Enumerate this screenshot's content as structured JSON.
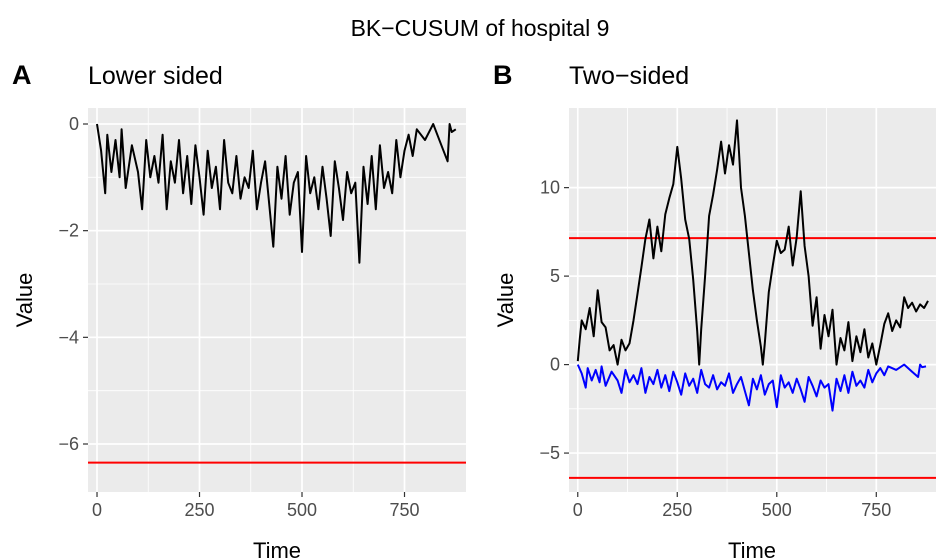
{
  "figure": {
    "title": "BK−CUSUM of hospital 9"
  },
  "chart_data": [
    {
      "type": "line",
      "tag": "A",
      "title": "Lower sided",
      "xlabel": "Time",
      "ylabel": "Value",
      "xlim": [
        -22,
        900
      ],
      "ylim": [
        -6.9,
        0.3
      ],
      "xticks": [
        0,
        250,
        500,
        750
      ],
      "xtick_labels": [
        "0",
        "250",
        "500",
        "750"
      ],
      "yticks": [
        -6,
        -4,
        -2,
        0
      ],
      "ytick_labels": [
        "−6",
        "−4",
        "−2",
        "0"
      ],
      "grid": true,
      "hlines": [
        {
          "y": -6.35,
          "color": "#ff0000"
        }
      ],
      "series": [
        {
          "color": "#000000",
          "x": [
            0,
            10,
            20,
            25,
            35,
            45,
            55,
            60,
            70,
            85,
            100,
            110,
            120,
            130,
            140,
            150,
            160,
            170,
            180,
            190,
            200,
            210,
            220,
            230,
            240,
            250,
            260,
            270,
            280,
            290,
            300,
            310,
            320,
            330,
            340,
            350,
            360,
            370,
            380,
            390,
            400,
            410,
            420,
            430,
            440,
            450,
            460,
            470,
            480,
            490,
            500,
            510,
            520,
            530,
            540,
            550,
            560,
            570,
            580,
            590,
            600,
            610,
            620,
            630,
            640,
            650,
            660,
            670,
            680,
            690,
            700,
            710,
            720,
            730,
            740,
            750,
            760,
            770,
            780,
            800,
            820,
            840,
            855,
            860,
            865,
            875
          ],
          "y": [
            0,
            -0.5,
            -1.3,
            -0.2,
            -0.9,
            -0.3,
            -1.0,
            -0.1,
            -1.2,
            -0.4,
            -0.9,
            -1.6,
            -0.3,
            -1.0,
            -0.6,
            -1.1,
            -0.2,
            -1.6,
            -0.7,
            -1.1,
            -0.3,
            -1.3,
            -0.6,
            -1.5,
            -0.4,
            -1.0,
            -1.7,
            -0.5,
            -1.2,
            -0.8,
            -1.6,
            -0.3,
            -1.1,
            -1.3,
            -0.6,
            -1.4,
            -1.0,
            -1.2,
            -0.5,
            -1.6,
            -1.1,
            -0.7,
            -1.5,
            -2.3,
            -0.8,
            -1.4,
            -0.6,
            -1.7,
            -1.1,
            -0.9,
            -2.4,
            -0.6,
            -1.3,
            -1.0,
            -1.6,
            -0.8,
            -1.4,
            -2.1,
            -0.7,
            -1.2,
            -1.8,
            -0.9,
            -1.3,
            -1.1,
            -2.6,
            -0.8,
            -1.5,
            -0.6,
            -1.6,
            -0.4,
            -1.2,
            -0.9,
            -1.3,
            -0.3,
            -1.0,
            -0.5,
            -0.2,
            -0.6,
            -0.1,
            -0.3,
            0,
            -0.4,
            -0.7,
            0,
            -0.15,
            -0.1
          ]
        }
      ]
    },
    {
      "type": "line",
      "tag": "B",
      "title": "Two−sided",
      "xlabel": "Time",
      "ylabel": "Value",
      "xlim": [
        -22,
        900
      ],
      "ylim": [
        -7.2,
        14.5
      ],
      "xticks": [
        0,
        250,
        500,
        750
      ],
      "xtick_labels": [
        "0",
        "250",
        "500",
        "750"
      ],
      "yticks": [
        -5,
        0,
        5,
        10
      ],
      "ytick_labels": [
        "−5",
        "0",
        "5",
        "10"
      ],
      "grid": true,
      "hlines": [
        {
          "y": 7.15,
          "color": "#ff0000"
        },
        {
          "y": -6.4,
          "color": "#ff0000"
        }
      ],
      "series": [
        {
          "color": "#000000",
          "x": [
            0,
            5,
            10,
            20,
            30,
            40,
            50,
            60,
            70,
            80,
            90,
            100,
            110,
            120,
            130,
            140,
            150,
            160,
            170,
            180,
            190,
            200,
            210,
            220,
            230,
            240,
            250,
            260,
            270,
            280,
            290,
            300,
            305,
            310,
            320,
            330,
            340,
            350,
            360,
            370,
            380,
            390,
            400,
            405,
            410,
            420,
            430,
            440,
            450,
            460,
            465,
            470,
            480,
            490,
            500,
            510,
            520,
            530,
            540,
            550,
            560,
            570,
            580,
            590,
            600,
            610,
            620,
            630,
            640,
            650,
            660,
            670,
            680,
            690,
            700,
            710,
            720,
            730,
            740,
            750,
            760,
            770,
            780,
            790,
            800,
            810,
            820,
            830,
            840,
            850,
            860,
            870,
            880
          ],
          "y": [
            0.2,
            1.4,
            2.5,
            2.0,
            3.2,
            1.6,
            4.2,
            2.4,
            2.1,
            0.8,
            1.1,
            0.0,
            1.4,
            0.8,
            1.2,
            2.5,
            4.0,
            5.5,
            7.1,
            8.2,
            6.0,
            7.8,
            6.4,
            8.5,
            9.4,
            10.2,
            12.3,
            10.5,
            8.2,
            7.1,
            4.8,
            1.9,
            0.0,
            2.0,
            5.0,
            8.4,
            9.6,
            11.0,
            12.6,
            10.8,
            12.4,
            11.3,
            13.8,
            12.0,
            10.0,
            8.4,
            6.3,
            4.2,
            2.5,
            1.0,
            0.0,
            1.2,
            4.1,
            5.6,
            7.0,
            6.3,
            6.5,
            7.8,
            5.6,
            7.2,
            9.8,
            6.7,
            5.0,
            2.2,
            3.8,
            0.9,
            2.8,
            1.6,
            3.1,
            0.0,
            1.5,
            0.8,
            2.4,
            0.2,
            1.6,
            0.7,
            2.0,
            0.4,
            1.2,
            0.0,
            1.1,
            2.3,
            2.9,
            1.9,
            2.5,
            2.1,
            3.8,
            3.2,
            3.5,
            3.0,
            3.4,
            3.2,
            3.6
          ]
        },
        {
          "color": "#0000ff",
          "x": [
            0,
            10,
            20,
            25,
            35,
            45,
            55,
            60,
            70,
            85,
            100,
            110,
            120,
            130,
            140,
            150,
            160,
            170,
            180,
            190,
            200,
            210,
            220,
            230,
            240,
            250,
            260,
            270,
            280,
            290,
            300,
            310,
            320,
            330,
            340,
            350,
            360,
            370,
            380,
            390,
            400,
            410,
            420,
            430,
            440,
            450,
            460,
            470,
            480,
            490,
            500,
            510,
            520,
            530,
            540,
            550,
            560,
            570,
            580,
            590,
            600,
            610,
            620,
            630,
            640,
            650,
            660,
            670,
            680,
            690,
            700,
            710,
            720,
            730,
            740,
            750,
            760,
            770,
            780,
            800,
            820,
            840,
            855,
            860,
            865,
            875
          ],
          "y": [
            0,
            -0.5,
            -1.3,
            -0.2,
            -0.9,
            -0.3,
            -1.0,
            -0.1,
            -1.2,
            -0.4,
            -0.9,
            -1.6,
            -0.3,
            -1.0,
            -0.6,
            -1.1,
            -0.2,
            -1.6,
            -0.7,
            -1.1,
            -0.3,
            -1.3,
            -0.6,
            -1.5,
            -0.4,
            -1.0,
            -1.7,
            -0.5,
            -1.2,
            -0.8,
            -1.6,
            -0.3,
            -1.1,
            -1.3,
            -0.6,
            -1.4,
            -1.0,
            -1.2,
            -0.5,
            -1.6,
            -1.1,
            -0.7,
            -1.5,
            -2.3,
            -0.8,
            -1.4,
            -0.6,
            -1.7,
            -1.1,
            -0.9,
            -2.4,
            -0.6,
            -1.3,
            -1.0,
            -1.6,
            -0.8,
            -1.4,
            -2.1,
            -0.7,
            -1.2,
            -1.8,
            -0.9,
            -1.3,
            -1.1,
            -2.6,
            -0.8,
            -1.5,
            -0.6,
            -1.6,
            -0.4,
            -1.2,
            -0.9,
            -1.3,
            -0.3,
            -1.0,
            -0.5,
            -0.2,
            -0.6,
            -0.1,
            -0.3,
            0,
            -0.4,
            -0.7,
            0,
            -0.15,
            -0.1
          ]
        }
      ]
    }
  ]
}
